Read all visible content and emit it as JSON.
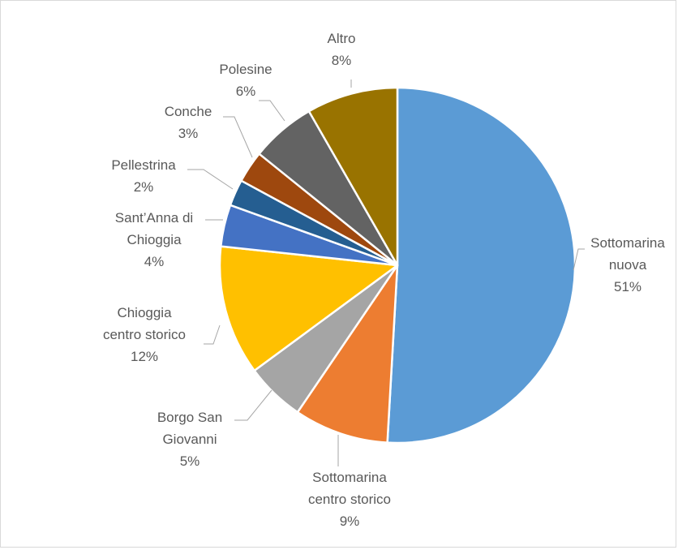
{
  "chart_data": {
    "type": "pie",
    "title": "",
    "start_angle_deg": 0,
    "direction": "clockwise",
    "slices": [
      {
        "lines": [
          "Sottomarina",
          "nuova"
        ],
        "pct_label": "51%",
        "value": 50.9,
        "color": "#5b9bd5"
      },
      {
        "lines": [
          "Sottomarina",
          "centro storico"
        ],
        "pct_label": "9%",
        "value": 8.6,
        "color": "#ed7d31"
      },
      {
        "lines": [
          "Borgo San",
          "Giovanni"
        ],
        "pct_label": "5%",
        "value": 5.4,
        "color": "#a5a5a5"
      },
      {
        "lines": [
          "Chioggia",
          "centro storico"
        ],
        "pct_label": "12%",
        "value": 11.8,
        "color": "#ffc000"
      },
      {
        "lines": [
          "Sant’Anna di",
          "Chioggia"
        ],
        "pct_label": "4%",
        "value": 3.8,
        "color": "#4472c4"
      },
      {
        "lines": [
          "Pellestrina"
        ],
        "pct_label": "2%",
        "value": 2.4,
        "color": "#255e91"
      },
      {
        "lines": [
          "Conche"
        ],
        "pct_label": "3%",
        "value": 2.9,
        "color": "#9e480e"
      },
      {
        "lines": [
          "Polesine"
        ],
        "pct_label": "6%",
        "value": 5.9,
        "color": "#636363"
      },
      {
        "lines": [
          "Altro"
        ],
        "pct_label": "8%",
        "value": 8.3,
        "color": "#997300"
      }
    ]
  }
}
